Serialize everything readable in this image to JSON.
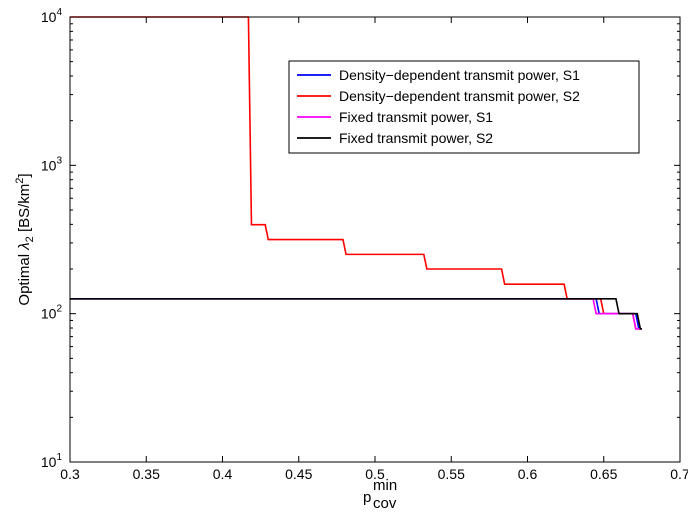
{
  "chart_data": {
    "type": "line",
    "xlabel": {
      "base": "p",
      "sup": "min",
      "sub": "cov"
    },
    "ylabel": {
      "prefix": "Optimal ",
      "symbol": "λ",
      "sub": "2",
      "mid": " [BS/km",
      "sup": "2",
      "suffix": "]"
    },
    "xlim": [
      0.3,
      0.7
    ],
    "ylim": [
      10,
      10000
    ],
    "yscale": "log",
    "grid": false,
    "legend_position": "top-right",
    "x_ticks": [
      {
        "value": 0.3,
        "label": "0.3"
      },
      {
        "value": 0.35,
        "label": "0.35"
      },
      {
        "value": 0.4,
        "label": "0.4"
      },
      {
        "value": 0.45,
        "label": "0.45"
      },
      {
        "value": 0.5,
        "label": "0.5"
      },
      {
        "value": 0.55,
        "label": "0.55"
      },
      {
        "value": 0.6,
        "label": "0.6"
      },
      {
        "value": 0.65,
        "label": "0.65"
      },
      {
        "value": 0.7,
        "label": "0.7"
      }
    ],
    "y_ticks": [
      {
        "value": 10,
        "base": "10",
        "exp": "1"
      },
      {
        "value": 100,
        "base": "10",
        "exp": "2"
      },
      {
        "value": 1000,
        "base": "10",
        "exp": "3"
      },
      {
        "value": 10000,
        "base": "10",
        "exp": "4"
      }
    ],
    "series": [
      {
        "name": "Density−dependent transmit power, S1",
        "color": "#0000ff",
        "x": [
          0.3,
          0.645,
          0.647,
          0.671,
          0.673,
          0.675
        ],
        "y": [
          126,
          126,
          100,
          100,
          79,
          79
        ]
      },
      {
        "name": "Density−dependent transmit power, S2",
        "color": "#ff0000",
        "x": [
          0.3,
          0.417,
          0.419,
          0.428,
          0.43,
          0.479,
          0.481,
          0.532,
          0.534,
          0.583,
          0.585,
          0.624,
          0.626,
          0.648,
          0.65,
          0.669,
          0.671,
          0.675
        ],
        "y": [
          10000,
          10000,
          398,
          398,
          316,
          316,
          251,
          251,
          200,
          200,
          158,
          158,
          126,
          126,
          100,
          100,
          79,
          79
        ]
      },
      {
        "name": "Fixed transmit power, S1",
        "color": "#ff00ff",
        "x": [
          0.3,
          0.643,
          0.645,
          0.669,
          0.671,
          0.675
        ],
        "y": [
          126,
          126,
          100,
          100,
          79,
          79
        ]
      },
      {
        "name": "Fixed transmit power, S2",
        "color": "#000000",
        "x": [
          0.3,
          0.658,
          0.66,
          0.672,
          0.674,
          0.675
        ],
        "y": [
          126,
          126,
          100,
          100,
          79,
          79
        ]
      }
    ]
  }
}
